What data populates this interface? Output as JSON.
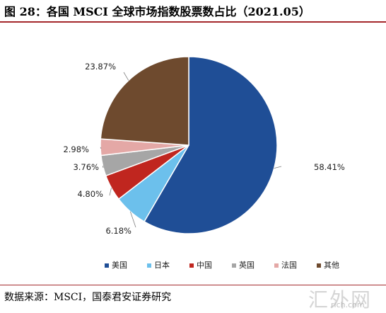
{
  "title": "图 28：各国 MSCI 全球市场指数股票数占比（2021.05）",
  "source": "数据来源：MSCI，国泰君安证券研究",
  "watermark": {
    "text": "汇外网",
    "sub": "rich.com"
  },
  "chart_data": {
    "type": "pie",
    "title": "",
    "categories": [
      "美国",
      "日本",
      "中国",
      "英国",
      "法国",
      "其他"
    ],
    "values": [
      58.41,
      6.18,
      4.8,
      3.76,
      2.98,
      23.87
    ],
    "labels": [
      "58.41%",
      "6.18%",
      "4.80%",
      "3.76%",
      "2.98%",
      "23.87%"
    ],
    "colors": [
      "#1f4e96",
      "#6cc0ec",
      "#c0261f",
      "#a6a6a6",
      "#e4a8a6",
      "#6e4a2e"
    ],
    "start_angle": 0,
    "direction": "clockwise",
    "legend_position": "bottom"
  }
}
